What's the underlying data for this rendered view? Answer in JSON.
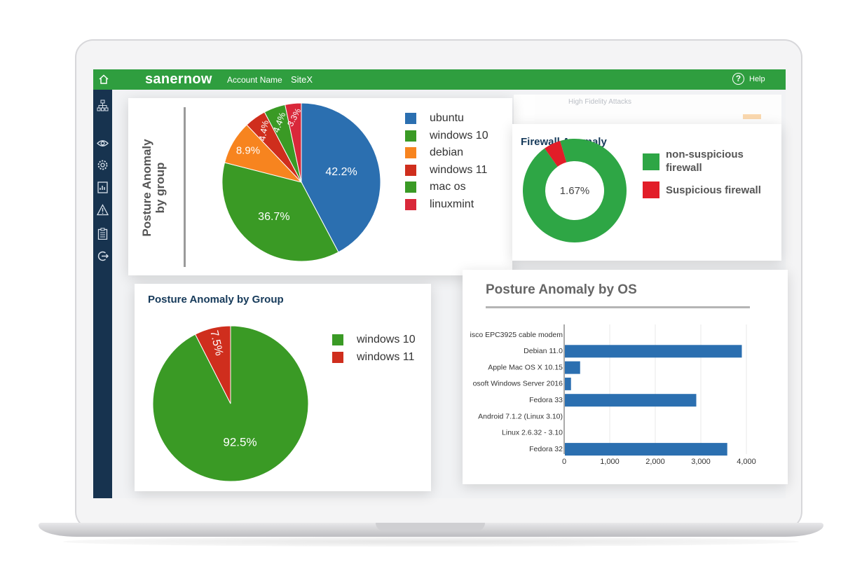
{
  "app": {
    "brand": "sanernow",
    "account": "Account Name",
    "site": "SiteX",
    "help": "Help",
    "help_icon": "?"
  },
  "background": {
    "hfa_title": "High Fidelity Attacks"
  },
  "sidebar": {
    "icons": [
      "home-icon",
      "network-icon",
      "eye-icon",
      "settings-icon",
      "report-icon",
      "alert-icon",
      "clipboard-icon",
      "logout-icon"
    ]
  },
  "colors": {
    "brand_green": "#2f9e3f",
    "sidebar_navy": "#17334f",
    "blue": "#2b6fb0",
    "green": "#3a9a25",
    "orange": "#f7841f",
    "red": "#cf2e1d",
    "firewall_green": "#2ea645",
    "firewall_red": "#e21d28"
  },
  "card_group_pie": {
    "title": "Posture Anomaly by group",
    "legend": [
      "ubuntu",
      "windows 10",
      "debian",
      "windows 11",
      "mac os",
      "linuxmint"
    ]
  },
  "card_firewall": {
    "title": "Firewall Anomaly",
    "legend": [
      "non-suspicious firewall",
      "Suspicious firewall"
    ]
  },
  "card_group2": {
    "title": "Posture Anomaly by Group",
    "legend": [
      "windows 10",
      "windows 11"
    ]
  },
  "card_os": {
    "title": "Posture Anomaly by OS"
  },
  "chart_data": [
    {
      "type": "pie",
      "title": "Posture Anomaly by group",
      "categories": [
        "ubuntu",
        "windows 10",
        "debian",
        "windows 11",
        "mac os",
        "linuxmint"
      ],
      "values": [
        42.2,
        36.7,
        8.9,
        4.4,
        4.4,
        3.3
      ],
      "labels": [
        "42.2%",
        "36.7%",
        "8.9%",
        "4.4%",
        "4.4%",
        "3.3%"
      ],
      "colors": [
        "#2b6fb0",
        "#3a9a25",
        "#f7841f",
        "#cf2e1d",
        "#3a9a25",
        "#d9283a"
      ],
      "legend_position": "right"
    },
    {
      "type": "pie",
      "title": "Firewall Anomaly",
      "categories": [
        "non-suspicious firewall",
        "Suspicious firewall"
      ],
      "values": [
        98.33,
        1.67
      ],
      "labels": [
        "1.67%"
      ],
      "colors": [
        "#2ea645",
        "#e21d28"
      ],
      "donut": true,
      "legend_position": "right"
    },
    {
      "type": "pie",
      "title": "Posture Anomaly by Group",
      "categories": [
        "windows 10",
        "windows 11"
      ],
      "values": [
        92.5,
        7.5
      ],
      "labels": [
        "92.5%",
        "7.5%"
      ],
      "colors": [
        "#3a9a25",
        "#cf2e1d"
      ],
      "legend_position": "right"
    },
    {
      "type": "bar",
      "orientation": "horizontal",
      "title": "Posture Anomaly by OS",
      "categories": [
        "isco EPC3925 cable modem",
        "Debian 11.0",
        "Apple Mac OS X 10.15",
        "osoft Windows Server 2016",
        "Fedora 33",
        "Android 7.1.2 (Linux 3.10)",
        "Linux 2.6.32 - 3.10",
        "Fedora 32"
      ],
      "values": [
        0,
        3900,
        350,
        150,
        2900,
        0,
        0,
        3580
      ],
      "xlim": [
        0,
        4000
      ],
      "xticks": [
        0,
        1000,
        2000,
        3000,
        4000
      ],
      "xtick_labels": [
        "0",
        "1,000",
        "2,000",
        "3,000",
        "4,000"
      ],
      "grid": true,
      "color": "#2b6fb0"
    }
  ]
}
